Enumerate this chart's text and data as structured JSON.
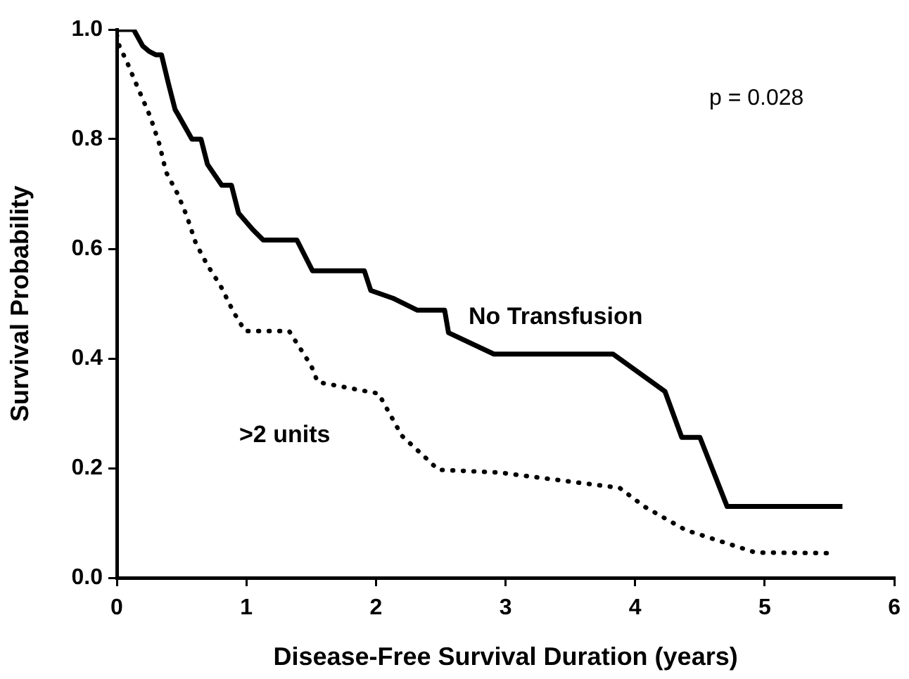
{
  "chart_data": {
    "type": "line",
    "xlabel": "Disease-Free Survival Duration (years)",
    "ylabel": "Survival Probability",
    "annotations": [
      "p = 0.028"
    ],
    "xlim": [
      0,
      6
    ],
    "ylim": [
      0,
      1
    ],
    "xticks": [
      0,
      1,
      2,
      3,
      4,
      5,
      6
    ],
    "yticks": [
      {
        "value": 0,
        "label": "0.0"
      },
      {
        "value": 0.2,
        "label": "0.2"
      },
      {
        "value": 0.4,
        "label": "0.4"
      },
      {
        "value": 0.6,
        "label": "0.6"
      },
      {
        "value": 0.8,
        "label": "0.8"
      },
      {
        "value": 1,
        "label": "1.0"
      }
    ],
    "grid": false,
    "legend": false,
    "marker": "none",
    "series": [
      {
        "name": "No Transfusion",
        "color": "#000000",
        "line_style": "solid",
        "x": [
          0,
          0.13,
          0.2,
          0.25,
          0.3,
          0.345,
          0.4,
          0.45,
          0.47,
          0.58,
          0.65,
          0.7,
          0.81,
          0.885,
          0.94,
          1.05,
          1.13,
          1.39,
          1.51,
          1.91,
          1.96,
          2.13,
          2.32,
          2.53,
          2.56,
          2.91,
          3.83,
          4.23,
          4.36,
          4.5,
          4.71,
          5.6
        ],
        "values": [
          1,
          1,
          0.97,
          0.96,
          0.954,
          0.954,
          0.9,
          0.854,
          0.846,
          0.8,
          0.8,
          0.754,
          0.716,
          0.716,
          0.665,
          0.635,
          0.616,
          0.616,
          0.56,
          0.56,
          0.524,
          0.51,
          0.488,
          0.488,
          0.447,
          0.408,
          0.408,
          0.34,
          0.256,
          0.256,
          0.13,
          0.13
        ]
      },
      {
        "name": ">2 units",
        "color": "#000000",
        "line_style": "dotted",
        "x": [
          0,
          0.02,
          0.08,
          0.16,
          0.26,
          0.33,
          0.38,
          0.47,
          0.54,
          0.61,
          0.7,
          0.8,
          0.9,
          0.99,
          1.33,
          1.5,
          1.55,
          2.02,
          2.2,
          2.41,
          2.48,
          2.95,
          3.88,
          4.07,
          4.39,
          4.93,
          5.5
        ],
        "values": [
          0.99,
          0.97,
          0.94,
          0.895,
          0.84,
          0.79,
          0.74,
          0.7,
          0.66,
          0.61,
          0.57,
          0.533,
          0.485,
          0.45,
          0.45,
          0.387,
          0.357,
          0.336,
          0.259,
          0.213,
          0.197,
          0.192,
          0.164,
          0.13,
          0.087,
          0.046,
          0.045
        ]
      }
    ]
  }
}
